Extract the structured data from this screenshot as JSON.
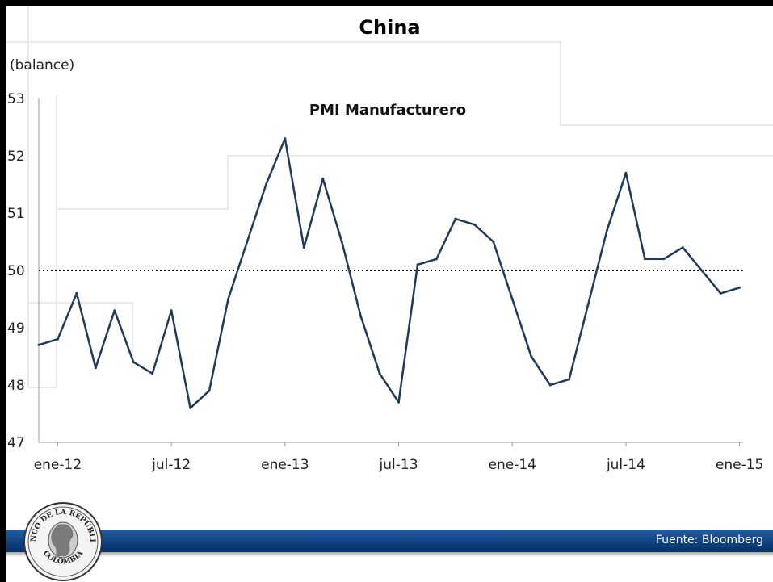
{
  "slide": {
    "title": "China",
    "source": "Fuente: Bloomberg",
    "logo_text_top": "BANCO DE LA REPÚBLICA",
    "logo_text_bottom": "COLOMBIA"
  },
  "chart_data": {
    "type": "line",
    "title": "PMI Manufacturero",
    "ylabel": "(balance)",
    "xlabel": "",
    "ylim": [
      47,
      53
    ],
    "yticks": [
      47,
      48,
      49,
      50,
      51,
      52,
      53
    ],
    "xtick_labels": [
      "ene-12",
      "jul-12",
      "ene-13",
      "jul-13",
      "ene-14",
      "jul-14",
      "ene-15"
    ],
    "reference_line": {
      "value": 50,
      "style": "dotted"
    },
    "grid": false,
    "line_color": "#1f3a5c",
    "series": [
      {
        "x": [
          "dic-11",
          "ene-12",
          "feb-12",
          "mar-12",
          "abr-12",
          "may-12",
          "jun-12",
          "jul-12",
          "ago-12",
          "sep-12",
          "oct-12",
          "nov-12",
          "dic-12",
          "ene-13",
          "feb-13",
          "mar-13",
          "abr-13",
          "may-13",
          "jun-13",
          "jul-13",
          "ago-13",
          "sep-13",
          "oct-13",
          "nov-13",
          "dic-13",
          "ene-14",
          "feb-14",
          "mar-14",
          "abr-14",
          "may-14",
          "jun-14",
          "jul-14",
          "ago-14",
          "sep-14",
          "oct-14",
          "nov-14",
          "dic-14",
          "ene-15"
        ],
        "values": [
          48.7,
          48.8,
          49.6,
          48.3,
          49.3,
          48.4,
          48.2,
          49.3,
          47.6,
          47.9,
          49.5,
          50.5,
          51.5,
          52.3,
          50.4,
          51.6,
          50.5,
          49.2,
          48.2,
          47.7,
          50.1,
          50.2,
          50.9,
          50.8,
          50.5,
          49.5,
          48.5,
          48.0,
          48.1,
          49.4,
          50.7,
          51.7,
          50.2,
          50.2,
          50.4,
          50.0,
          49.6,
          49.7
        ]
      }
    ]
  }
}
